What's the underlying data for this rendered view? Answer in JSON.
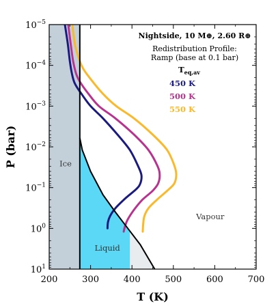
{
  "chart_data": {
    "type": "line",
    "title": "Nightside, 10 M⊕, 2.60 R⊕",
    "subtitle": "Redistribution Profile:\nRamp (base at 0.1 bar)",
    "xlabel": "T (K)",
    "ylabel": "P (bar)",
    "xlim": [
      200,
      700
    ],
    "ylim": [
      10,
      1e-05
    ],
    "y_scale": "log",
    "y_inverted": true,
    "x_ticks": [
      200,
      300,
      400,
      500,
      600,
      700
    ],
    "x_tick_labels": [
      "200",
      "300",
      "400",
      "500",
      "600",
      "700"
    ],
    "y_ticks": [
      1e-05,
      0.0001,
      0.001,
      0.01,
      0.1,
      1,
      10
    ],
    "y_tick_labels": [
      {
        "base": "10",
        "exp": "−5"
      },
      {
        "base": "10",
        "exp": "−4"
      },
      {
        "base": "10",
        "exp": "−3"
      },
      {
        "base": "10",
        "exp": "−2"
      },
      {
        "base": "10",
        "exp": "−1"
      },
      {
        "base": "10",
        "exp": "0"
      },
      {
        "base": "10",
        "exp": "1"
      }
    ],
    "legend_title": {
      "main": "T",
      "sub": "eq,av"
    },
    "series": [
      {
        "name": "450 K",
        "color": "#1a1a80",
        "points": [
          [
            238,
            1e-05
          ],
          [
            245,
            3e-05
          ],
          [
            250,
            8e-05
          ],
          [
            255,
            0.00016
          ],
          [
            262,
            0.00028
          ],
          [
            278,
            0.0005
          ],
          [
            300,
            0.001
          ],
          [
            330,
            0.002
          ],
          [
            365,
            0.005
          ],
          [
            395,
            0.012
          ],
          [
            415,
            0.03
          ],
          [
            423,
            0.05
          ],
          [
            420,
            0.08
          ],
          [
            410,
            0.11
          ],
          [
            385,
            0.18
          ],
          [
            360,
            0.32
          ],
          [
            347,
            0.5
          ],
          [
            342,
            0.7
          ],
          [
            341,
            1.0
          ]
        ]
      },
      {
        "name": "500 K",
        "color": "#b8338f",
        "points": [
          [
            246,
            1e-05
          ],
          [
            252,
            3e-05
          ],
          [
            258,
            8e-05
          ],
          [
            265,
            0.00016
          ],
          [
            275,
            0.00026
          ],
          [
            295,
            0.0005
          ],
          [
            320,
            0.001
          ],
          [
            360,
            0.002
          ],
          [
            405,
            0.005
          ],
          [
            440,
            0.012
          ],
          [
            462,
            0.03
          ],
          [
            467,
            0.05
          ],
          [
            463,
            0.08
          ],
          [
            450,
            0.12
          ],
          [
            425,
            0.2
          ],
          [
            405,
            0.35
          ],
          [
            390,
            0.6
          ],
          [
            383,
            0.9
          ],
          [
            380,
            1.2
          ]
        ]
      },
      {
        "name": "550 K",
        "color": "#fbb829",
        "points": [
          [
            256,
            1e-05
          ],
          [
            262,
            3e-05
          ],
          [
            270,
            6e-05
          ],
          [
            282,
            0.00012
          ],
          [
            305,
            0.00025
          ],
          [
            330,
            0.0005
          ],
          [
            362,
            0.001
          ],
          [
            405,
            0.002
          ],
          [
            450,
            0.005
          ],
          [
            485,
            0.012
          ],
          [
            503,
            0.03
          ],
          [
            507,
            0.05
          ],
          [
            502,
            0.08
          ],
          [
            485,
            0.12
          ],
          [
            460,
            0.2
          ],
          [
            440,
            0.32
          ],
          [
            430,
            0.5
          ],
          [
            427,
            0.8
          ],
          [
            426,
            1.2
          ]
        ]
      }
    ],
    "phase_boundary": {
      "points": [
        [
          274,
          0.006
        ],
        [
          280,
          0.012
        ],
        [
          300,
          0.04
        ],
        [
          330,
          0.15
        ],
        [
          360,
          0.4
        ],
        [
          390,
          1.0
        ],
        [
          420,
          2.5
        ],
        [
          455,
          10
        ]
      ]
    },
    "ice_boundary_T": 274,
    "liquid_max_T": 395,
    "regions": {
      "ice": "Ice",
      "liquid": "Liquid",
      "vapour": "Vapour"
    },
    "colors": {
      "ice_fill": "#c3d0da",
      "liquid_fill": "#5ad8f5",
      "light_fill": "#e8ecef"
    }
  }
}
